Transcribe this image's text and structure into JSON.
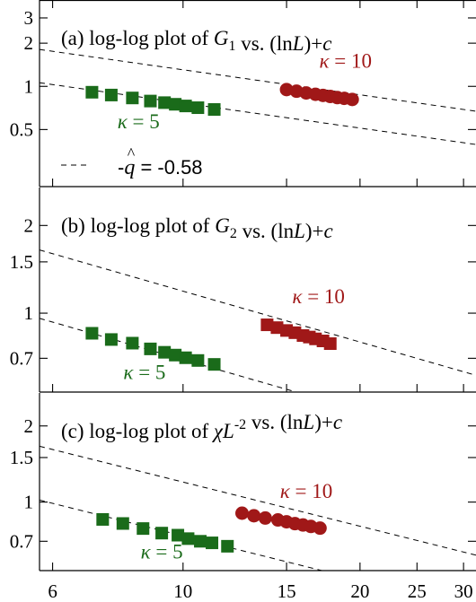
{
  "chart_data": [
    {
      "type": "scatter",
      "panel": "a",
      "title": {
        "pre": "(a) log-log plot of ",
        "symbol": "G",
        "sub": "1",
        "sup": "",
        "post": " vs. (ln",
        "post_it": "L",
        "post2": ")+",
        "post_it2": "c"
      },
      "xscale": "log",
      "yscale": "log",
      "xlim": [
        5.7,
        31.5
      ],
      "ylim": [
        0.2,
        4.0
      ],
      "yticks": [
        {
          "v": 0.5,
          "label": "0.5"
        },
        {
          "v": 1,
          "label": "1"
        },
        {
          "v": 2,
          "label": "2"
        },
        {
          "v": 3,
          "label": "3"
        }
      ],
      "series": [
        {
          "name": "κ = 5",
          "color": "#1a6b1a",
          "marker": "square",
          "x": [
            7.0,
            7.55,
            8.2,
            8.8,
            9.3,
            9.7,
            10.1,
            10.6,
            11.3
          ],
          "y": [
            0.91,
            0.87,
            0.83,
            0.79,
            0.77,
            0.75,
            0.73,
            0.71,
            0.69
          ]
        },
        {
          "name": "κ = 10",
          "color": "#a01818",
          "marker": "circle",
          "x": [
            15.0,
            15.6,
            16.2,
            16.8,
            17.3,
            17.8,
            18.3,
            18.8,
            19.4
          ],
          "y": [
            0.95,
            0.925,
            0.9,
            0.88,
            0.865,
            0.85,
            0.835,
            0.825,
            0.81
          ]
        }
      ],
      "lines": [
        {
          "slope": -0.58,
          "x0": 10,
          "y0": 0.765
        },
        {
          "slope": -0.58,
          "x0": 10,
          "y0": 1.305
        }
      ],
      "labels": [
        {
          "text_pre": "κ",
          "text_post": " = 10",
          "color": "#a01818",
          "x": 18.9,
          "y": 1.35
        },
        {
          "text_pre": "κ",
          "text_post": " = 5",
          "color": "#1a6b1a",
          "x": 8.4,
          "y": 0.51
        }
      ],
      "legend": {
        "sign": "-",
        "symbol": "q",
        "hat": "^",
        "text": " = -0.58"
      }
    },
    {
      "type": "scatter",
      "panel": "b",
      "title": {
        "pre": "(b) log-log plot of ",
        "symbol": "G",
        "sub": "2",
        "sup": "",
        "post": " vs. (ln",
        "post_it": "L",
        "post2": ")+",
        "post_it2": "c"
      },
      "xscale": "log",
      "yscale": "log",
      "xlim": [
        5.7,
        31.5
      ],
      "ylim": [
        0.536,
        2.7
      ],
      "yticks": [
        {
          "v": 0.7,
          "label": "0.7"
        },
        {
          "v": 1,
          "label": "1"
        },
        {
          "v": 1.5,
          "label": "1.5"
        },
        {
          "v": 2,
          "label": "2"
        }
      ],
      "series": [
        {
          "name": "κ = 5",
          "color": "#1a6b1a",
          "marker": "square",
          "x": [
            7.0,
            7.55,
            8.2,
            8.8,
            9.3,
            9.7,
            10.1,
            10.6,
            11.3
          ],
          "y": [
            0.853,
            0.812,
            0.789,
            0.754,
            0.734,
            0.718,
            0.703,
            0.688,
            0.667
          ]
        },
        {
          "name": "κ = 10",
          "color": "#a01818",
          "marker": "square",
          "x": [
            13.9,
            14.45,
            15.0,
            15.5,
            16.0,
            16.4,
            16.8,
            17.3,
            17.8
          ],
          "y": [
            0.912,
            0.892,
            0.872,
            0.857,
            0.838,
            0.828,
            0.816,
            0.803,
            0.786
          ]
        }
      ],
      "lines": [
        {
          "slope": -0.58,
          "x0": 10,
          "y0": 0.693
        },
        {
          "slope": -0.58,
          "x0": 10,
          "y0": 1.19
        }
      ],
      "labels": [
        {
          "text_pre": "κ",
          "text_post": " = 10",
          "color": "#a01818",
          "x": 17.0,
          "y": 1.08
        },
        {
          "text_pre": "κ",
          "text_post": " = 5",
          "color": "#1a6b1a",
          "x": 8.6,
          "y": 0.595
        }
      ]
    },
    {
      "type": "scatter",
      "panel": "c",
      "title": {
        "pre": "(c) log-log plot of ",
        "symbol": "χ",
        "sub": "",
        "sup": "-2",
        "post": " vs. (ln",
        "post_it": "L",
        "post2": ")+",
        "post_it2": "c",
        "mid_it": "L"
      },
      "xscale": "log",
      "yscale": "log",
      "xlim": [
        5.7,
        31.5
      ],
      "ylim": [
        0.536,
        2.7
      ],
      "yticks": [
        {
          "v": 0.7,
          "label": "0.7"
        },
        {
          "v": 1,
          "label": "1"
        },
        {
          "v": 1.5,
          "label": "1.5"
        },
        {
          "v": 2,
          "label": "2"
        }
      ],
      "series": [
        {
          "name": "κ = 5",
          "color": "#1a6b1a",
          "marker": "square",
          "x": [
            7.3,
            7.9,
            8.55,
            9.2,
            9.8,
            10.2,
            10.7,
            11.2,
            11.9
          ],
          "y": [
            0.854,
            0.823,
            0.786,
            0.754,
            0.74,
            0.717,
            0.7,
            0.69,
            0.669
          ]
        },
        {
          "name": "κ = 10",
          "color": "#a01818",
          "marker": "circle",
          "x": [
            12.6,
            13.2,
            13.8,
            14.5,
            15.0,
            15.5,
            16.0,
            16.5,
            17.1
          ],
          "y": [
            0.904,
            0.883,
            0.865,
            0.85,
            0.836,
            0.822,
            0.812,
            0.801,
            0.789
          ]
        }
      ],
      "lines": [
        {
          "slope": -0.58,
          "x0": 10,
          "y0": 0.735
        },
        {
          "slope": -0.58,
          "x0": 10,
          "y0": 1.2
        }
      ],
      "labels": [
        {
          "text_pre": "κ",
          "text_post": " = 10",
          "color": "#a01818",
          "x": 16.2,
          "y": 1.04
        },
        {
          "text_pre": "κ",
          "text_post": " = 5",
          "color": "#1a6b1a",
          "x": 9.2,
          "y": 0.598
        }
      ]
    }
  ],
  "x_axis": {
    "ticks": [
      {
        "v": 6,
        "label": "6"
      },
      {
        "v": 10,
        "label": "10"
      },
      {
        "v": 15,
        "label": "15"
      },
      {
        "v": 20,
        "label": "20"
      },
      {
        "v": 25,
        "label": "25"
      },
      {
        "v": 30,
        "label": "30"
      }
    ]
  }
}
